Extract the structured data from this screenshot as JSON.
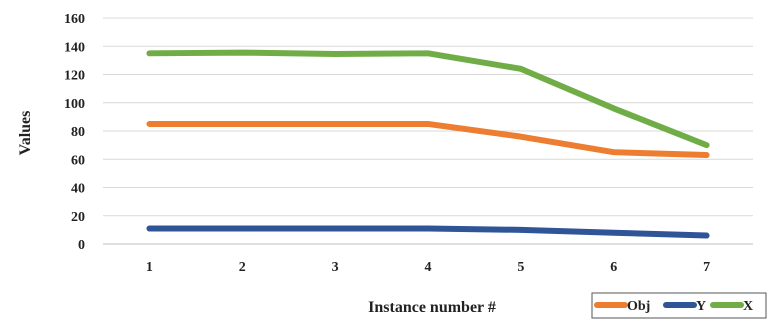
{
  "chart_data": {
    "type": "line",
    "xlabel": "Instance number #",
    "ylabel": "Values",
    "categories": [
      "1",
      "2",
      "3",
      "4",
      "5",
      "6",
      "7"
    ],
    "ylim": [
      0,
      160
    ],
    "yticks": [
      0,
      20,
      40,
      60,
      80,
      100,
      120,
      140,
      160
    ],
    "grid": true,
    "legend_position": "bottom-right",
    "series": [
      {
        "name": "Obj",
        "color": "#ED7D31",
        "values": [
          85,
          85,
          85,
          85,
          76,
          65,
          63
        ]
      },
      {
        "name": "Y",
        "color": "#2F5597",
        "values": [
          11,
          11,
          11,
          11,
          10,
          8,
          6
        ]
      },
      {
        "name": "X",
        "color": "#70AD47",
        "values": [
          135,
          135.5,
          134.5,
          135,
          124,
          96,
          70
        ]
      }
    ]
  }
}
